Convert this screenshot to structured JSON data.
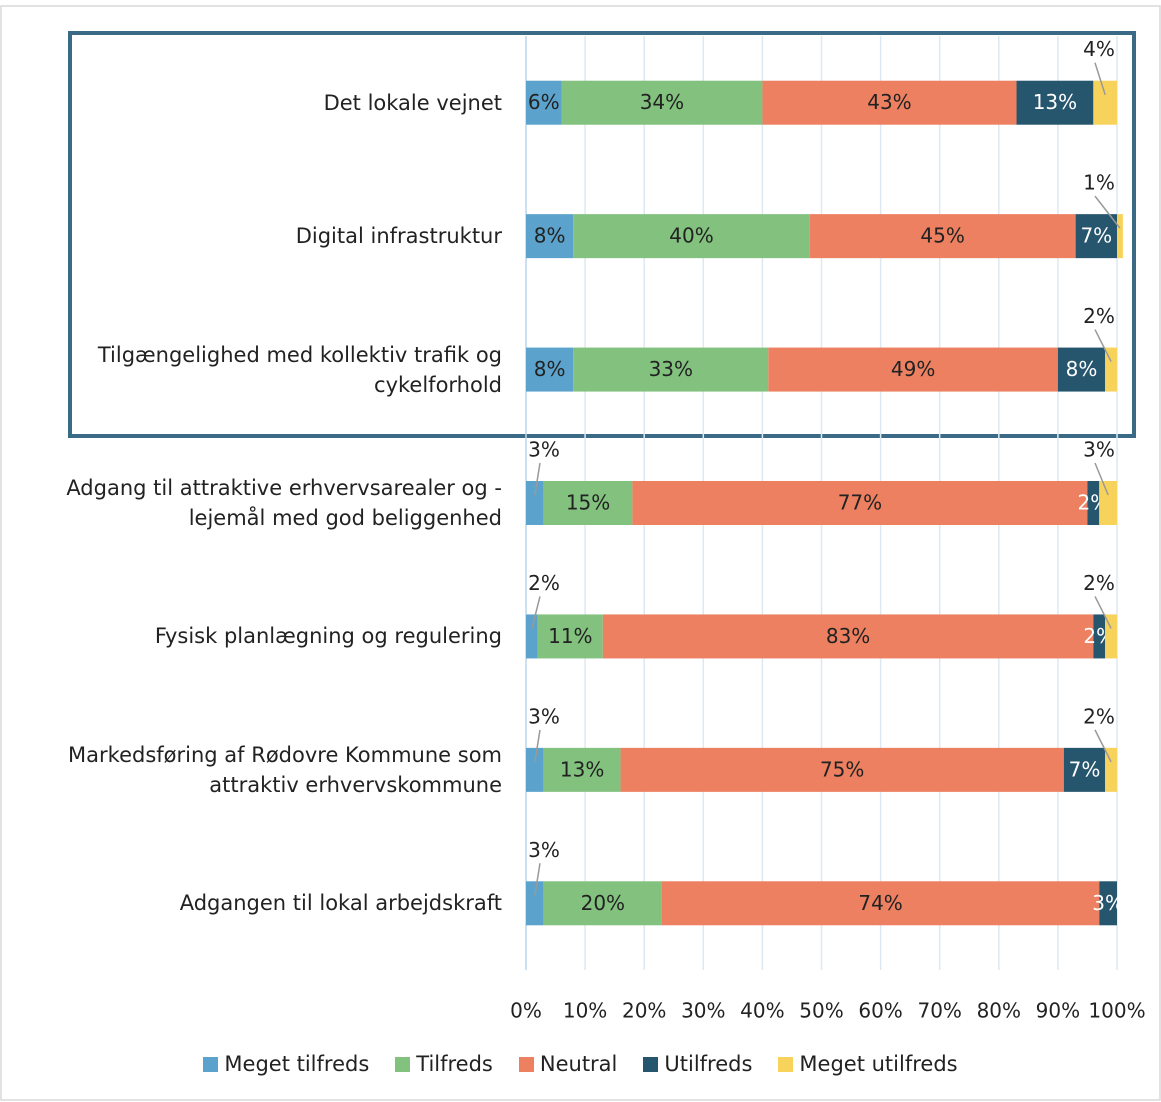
{
  "chart_data": {
    "type": "stacked_barh",
    "categories": [
      "Det lokale vejnet",
      "Digital infrastruktur",
      "Tilgængelighed med kollektiv trafik og cykelforhold",
      "Adgang til attraktive erhvervsarealer og - lejemål med god beliggenhed",
      "Fysisk planlægning og regulering",
      "Markedsføring af Rødovre Kommune som attraktiv erhvervskommune",
      "Adgangen til lokal arbejdskraft"
    ],
    "series": [
      {
        "name": "Meget tilfreds",
        "color": "#5ba3cc",
        "values": [
          6,
          8,
          8,
          3,
          2,
          3,
          3
        ],
        "value_labels": [
          "6%",
          "8%",
          "8%",
          "3%",
          "2%",
          "3%",
          "3%"
        ]
      },
      {
        "name": "Tilfreds",
        "color": "#82c17e",
        "values": [
          34,
          40,
          33,
          15,
          11,
          13,
          20
        ],
        "value_labels": [
          "34%",
          "40%",
          "33%",
          "15%",
          "11%",
          "13%",
          "20%"
        ]
      },
      {
        "name": "Neutral",
        "color": "#ec8060",
        "values": [
          43,
          45,
          49,
          77,
          83,
          75,
          74
        ],
        "value_labels": [
          "43%",
          "45%",
          "49%",
          "77%",
          "83%",
          "75%",
          "74%"
        ]
      },
      {
        "name": "Utilfreds",
        "color": "#26556e",
        "values": [
          13,
          7,
          8,
          2,
          2,
          7,
          3
        ],
        "value_labels": [
          "13%",
          "7%",
          "8%",
          "2%",
          "2%",
          "7%",
          "3%"
        ]
      },
      {
        "name": "Meget utilfreds",
        "color": "#f7d35c",
        "values": [
          4,
          1,
          2,
          3,
          2,
          2,
          null
        ],
        "value_labels": [
          "4%",
          "1%",
          "2%",
          "3%",
          "2%",
          "2%",
          null
        ]
      }
    ],
    "xlim": [
      0,
      100
    ],
    "xticks": [
      {
        "value": 0,
        "label": "0%"
      },
      {
        "value": 10,
        "label": "10%"
      },
      {
        "value": 20,
        "label": "20%"
      },
      {
        "value": 30,
        "label": "30%"
      },
      {
        "value": 40,
        "label": "40%"
      },
      {
        "value": 50,
        "label": "50%"
      },
      {
        "value": 60,
        "label": "60%"
      },
      {
        "value": 70,
        "label": "70%"
      },
      {
        "value": 80,
        "label": "80%"
      },
      {
        "value": 90,
        "label": "90%"
      },
      {
        "value": 100,
        "label": "100%"
      }
    ],
    "grid": true
  }
}
